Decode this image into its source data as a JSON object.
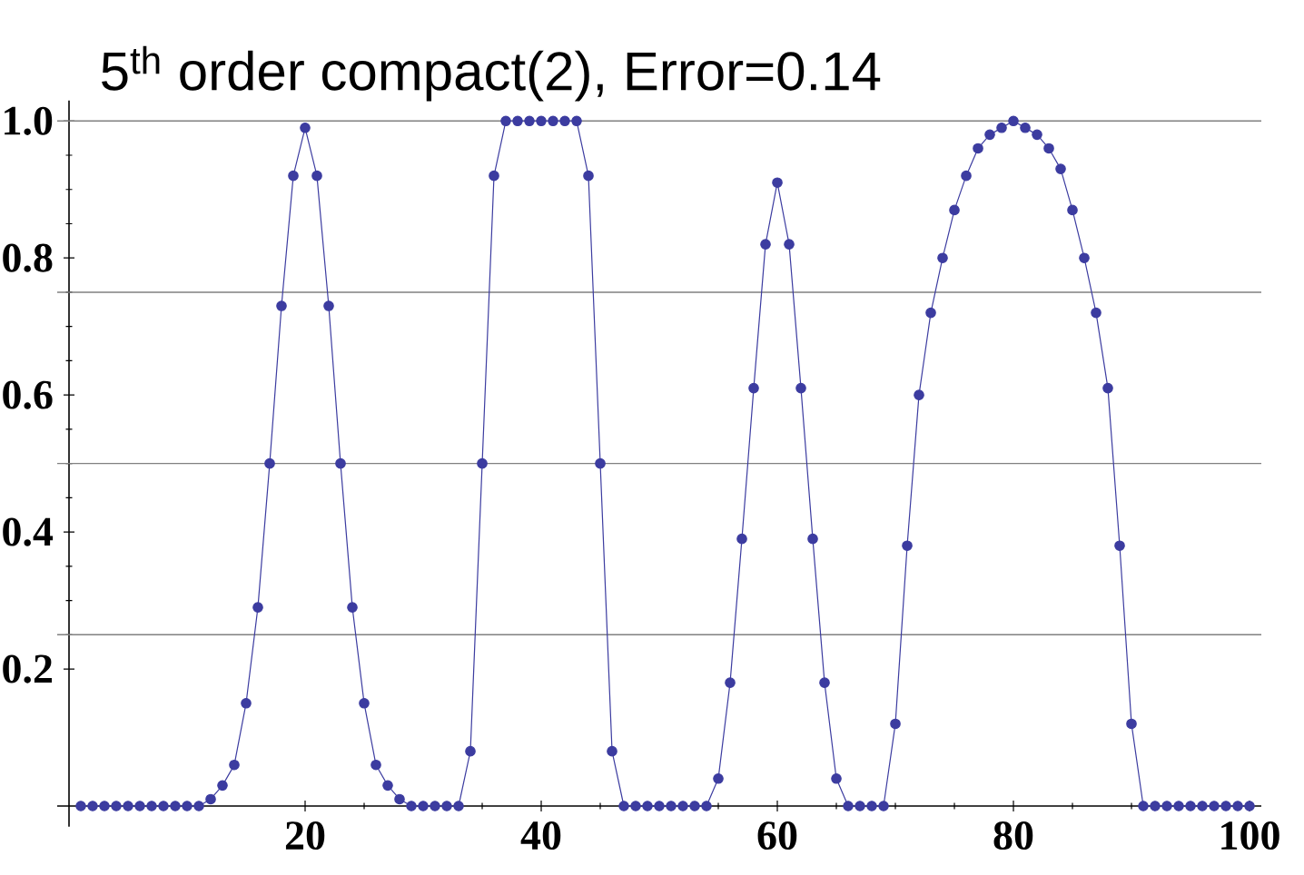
{
  "chart_data": {
    "type": "line",
    "title": "5$^{th}$ order compact(2), Error=0.14",
    "x": [
      1,
      2,
      3,
      4,
      5,
      6,
      7,
      8,
      9,
      10,
      11,
      12,
      13,
      14,
      15,
      16,
      17,
      18,
      19,
      20,
      21,
      22,
      23,
      24,
      25,
      26,
      27,
      28,
      29,
      30,
      31,
      32,
      33,
      34,
      35,
      36,
      37,
      38,
      39,
      40,
      41,
      42,
      43,
      44,
      45,
      46,
      47,
      48,
      49,
      50,
      51,
      52,
      53,
      54,
      55,
      56,
      57,
      58,
      59,
      60,
      61,
      62,
      63,
      64,
      65,
      66,
      67,
      68,
      69,
      70,
      71,
      72,
      73,
      74,
      75,
      76,
      77,
      78,
      79,
      80,
      81,
      82,
      83,
      84,
      85,
      86,
      87,
      88,
      89,
      90,
      91,
      92,
      93,
      94,
      95,
      96,
      97,
      98,
      99,
      100
    ],
    "series": [
      {
        "color": "#3c3ca0",
        "values": [
          0,
          0,
          0,
          0,
          0,
          0,
          0,
          0,
          0,
          0,
          0,
          0.01,
          0.03,
          0.06,
          0.15,
          0.29,
          0.5,
          0.73,
          0.92,
          0.99,
          0.92,
          0.73,
          0.5,
          0.29,
          0.15,
          0.06,
          0.03,
          0.01,
          0,
          0,
          0,
          0,
          0,
          0.08,
          0.5,
          0.92,
          1.0,
          1.0,
          1.0,
          1.0,
          1.0,
          1.0,
          1.0,
          0.92,
          0.5,
          0.08,
          0,
          0,
          0,
          0,
          0,
          0,
          0,
          0,
          0.04,
          0.18,
          0.39,
          0.61,
          0.82,
          0.91,
          0.82,
          0.61,
          0.39,
          0.18,
          0.04,
          0,
          0,
          0,
          0,
          0.12,
          0.38,
          0.6,
          0.72,
          0.8,
          0.87,
          0.92,
          0.96,
          0.98,
          0.99,
          1.0,
          0.99,
          0.98,
          0.96,
          0.93,
          0.87,
          0.8,
          0.72,
          0.61,
          0.38,
          0.12,
          0,
          0,
          0,
          0,
          0,
          0,
          0,
          0,
          0,
          0
        ]
      }
    ],
    "xlim": [
      -1,
      101
    ],
    "ylim": [
      -0.03,
      1.03
    ],
    "xticks": [
      20,
      40,
      60,
      80,
      100
    ],
    "yticks": [
      0.2,
      0.4,
      0.6,
      0.8,
      {
        "value": 1,
        "label": "1.0"
      }
    ],
    "ref_lines": [
      {
        "axis": "y",
        "value": 0.25,
        "color": "#808080"
      },
      {
        "axis": "y",
        "value": 0.5,
        "color": "#808080"
      },
      {
        "axis": "y",
        "value": 0.75,
        "color": "#808080"
      },
      {
        "axis": "y",
        "value": 1,
        "color": "#808080"
      }
    ],
    "marker": "circle",
    "line_style": "solid"
  }
}
